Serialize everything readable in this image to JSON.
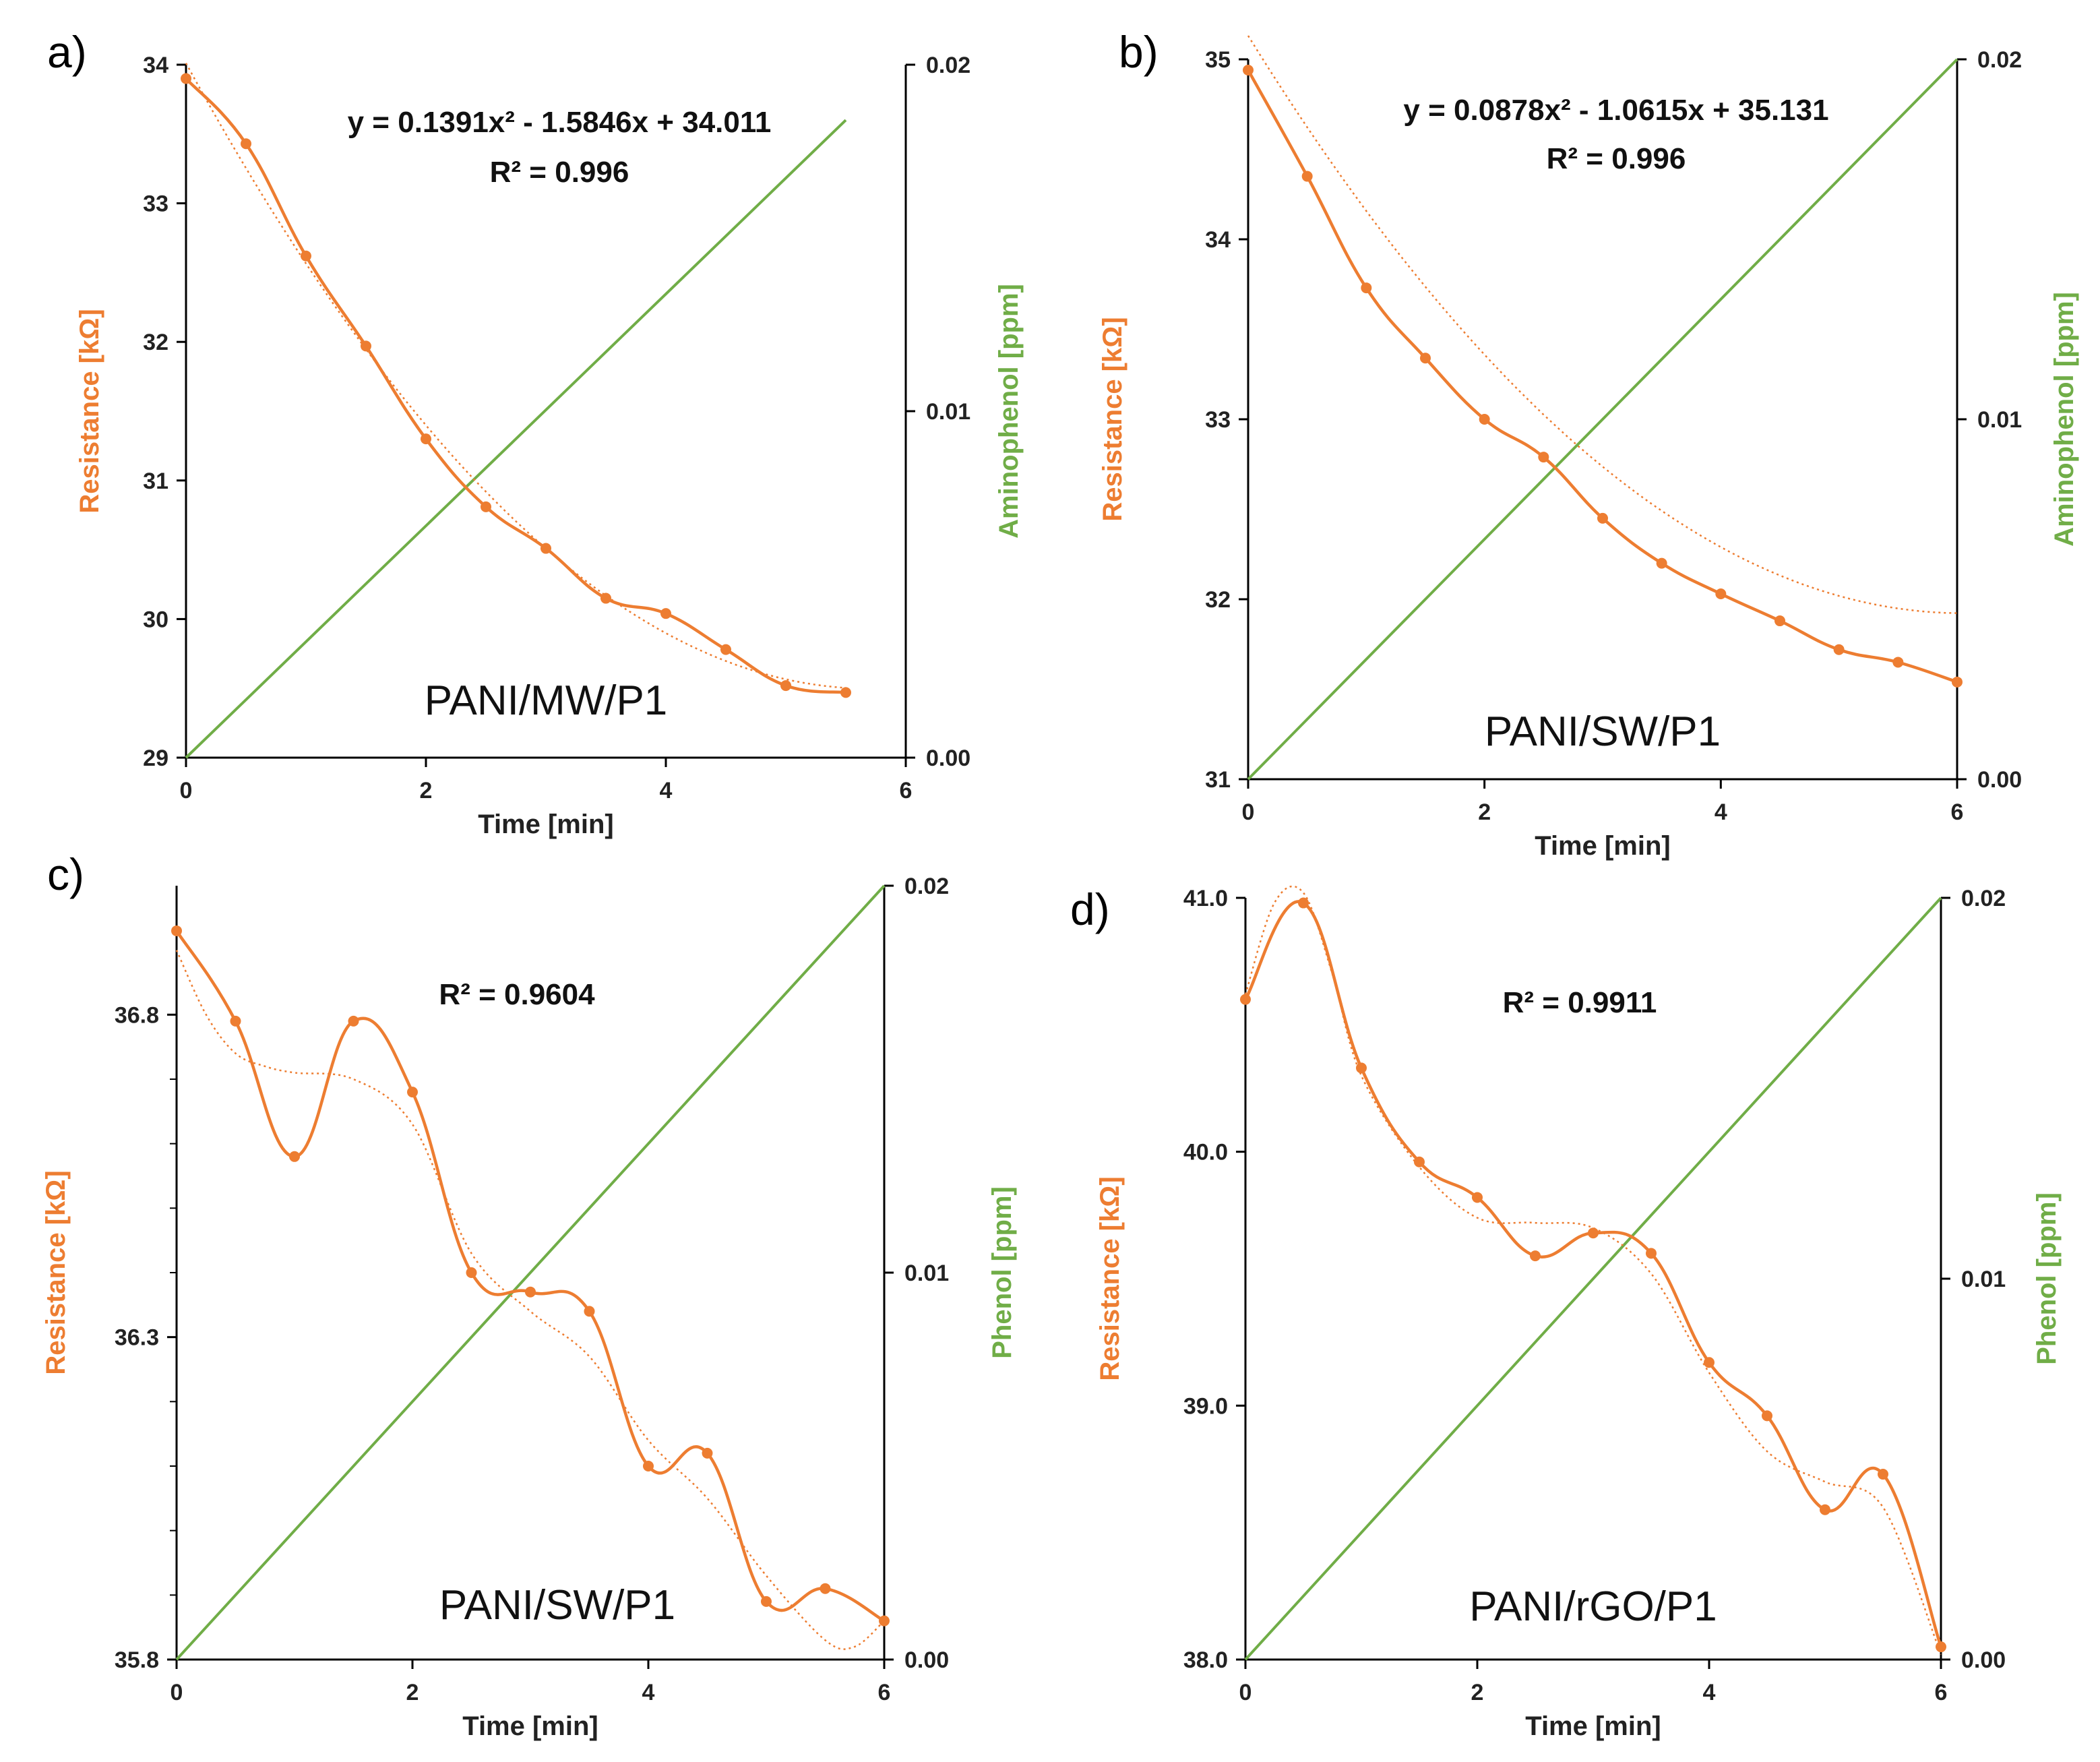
{
  "colors": {
    "resistance": "#ED7D31",
    "analyte": "#70AD47",
    "axis": "#000000"
  },
  "chart_data": [
    {
      "type": "line",
      "panel": "a)",
      "sample": "PANI/MW/P1",
      "xlabel": "Time [min]",
      "ylabel": "Resistance [kΩ]",
      "y2label": "Aminophenol [ppm]",
      "xlim": [
        0,
        6
      ],
      "xticks": [
        0,
        2,
        4,
        6
      ],
      "xtick_labels": [
        "0",
        "2",
        "4",
        "6"
      ],
      "ylim": [
        29,
        34
      ],
      "yticks": [
        29,
        30,
        31,
        32,
        33,
        34
      ],
      "ytick_labels": [
        "29",
        "30",
        "31",
        "32",
        "33",
        "34"
      ],
      "y2lim": [
        0,
        0.02
      ],
      "y2ticks": [
        0,
        0.01,
        0.02
      ],
      "y2tick_labels": [
        "0.00",
        "0.01",
        "0.02"
      ],
      "equation": "y = 0.1391x² - 1.5846x + 34.011",
      "r2": "R² = 0.996",
      "trend": {
        "kind": "poly2",
        "coef": [
          0.1391,
          -1.5846,
          34.011
        ],
        "xrange": [
          0,
          5.5
        ]
      },
      "series": [
        {
          "name": "Resistance",
          "axis": "left",
          "x": [
            0,
            0.5,
            1,
            1.5,
            2,
            2.5,
            3,
            3.5,
            4,
            4.5,
            5,
            5.5
          ],
          "values": [
            33.9,
            33.43,
            32.62,
            31.97,
            31.3,
            30.81,
            30.51,
            30.15,
            30.04,
            29.78,
            29.52,
            29.47
          ]
        },
        {
          "name": "Aminophenol",
          "axis": "right",
          "x": [
            0,
            5.5
          ],
          "values": [
            0.0,
            0.0184
          ]
        }
      ]
    },
    {
      "type": "line",
      "panel": "b)",
      "sample": "PANI/SW/P1",
      "xlabel": "Time [min]",
      "ylabel": "Resistance [kΩ]",
      "y2label": "Aminophenol [ppm]",
      "xlim": [
        0,
        6
      ],
      "xticks": [
        0,
        2,
        4,
        6
      ],
      "xtick_labels": [
        "0",
        "2",
        "4",
        "6"
      ],
      "ylim": [
        31,
        35
      ],
      "yticks": [
        31,
        32,
        33,
        34,
        35
      ],
      "ytick_labels": [
        "31",
        "32",
        "33",
        "34",
        "35"
      ],
      "y2lim": [
        0,
        0.02
      ],
      "y2ticks": [
        0,
        0.01,
        0.02
      ],
      "y2tick_labels": [
        "0.00",
        "0.01",
        "0.02"
      ],
      "equation": "y = 0.0878x² - 1.0615x + 35.131",
      "r2": "R² = 0.996",
      "trend": {
        "kind": "poly2",
        "coef": [
          0.0878,
          -1.0615,
          35.131
        ],
        "xrange": [
          0,
          6
        ]
      },
      "series": [
        {
          "name": "Resistance",
          "axis": "left",
          "x": [
            0,
            0.5,
            1,
            1.5,
            2,
            2.5,
            3,
            3.5,
            4,
            4.5,
            5,
            5.5,
            6
          ],
          "values": [
            34.94,
            34.35,
            33.73,
            33.34,
            33.0,
            32.79,
            32.45,
            32.2,
            32.03,
            31.88,
            31.72,
            31.65,
            31.54
          ]
        },
        {
          "name": "Aminophenol",
          "axis": "right",
          "x": [
            0,
            6
          ],
          "values": [
            0.0,
            0.02
          ]
        }
      ]
    },
    {
      "type": "line",
      "panel": "c)",
      "sample": "PANI/SW/P1",
      "xlabel": "Time [min]",
      "ylabel": "Resistance [kΩ]",
      "y2label": "Phenol [ppm]",
      "xlim": [
        0,
        6
      ],
      "xticks": [
        0,
        2,
        4,
        6
      ],
      "xtick_labels": [
        "0",
        "2",
        "4",
        "6"
      ],
      "ylim": [
        35.8,
        37.0
      ],
      "yticks": [
        35.8,
        36.3,
        36.8
      ],
      "ytick_labels": [
        "35.8",
        "36.3",
        "36.8"
      ],
      "yminor": [
        35.9,
        36.0,
        36.1,
        36.2,
        36.4,
        36.5,
        36.6,
        36.7
      ],
      "y2lim": [
        0,
        0.02
      ],
      "y2ticks": [
        0,
        0.01,
        0.02
      ],
      "y2tick_labels": [
        "0.00",
        "0.01",
        "0.02"
      ],
      "equation": "",
      "r2": "R² = 0.9604",
      "trend": {
        "kind": "points",
        "x": [
          0,
          0.25,
          0.5,
          0.75,
          1,
          1.5,
          2,
          2.5,
          3,
          3.5,
          4,
          4.5,
          5,
          5.5,
          5.75,
          6
        ],
        "y": [
          36.9,
          36.8,
          36.74,
          36.72,
          36.71,
          36.7,
          36.63,
          36.43,
          36.34,
          36.27,
          36.14,
          36.05,
          35.93,
          35.83,
          35.82,
          35.86
        ]
      },
      "series": [
        {
          "name": "Resistance",
          "axis": "left",
          "x": [
            0,
            0.5,
            1,
            1.5,
            2,
            2.5,
            3,
            3.5,
            4,
            4.5,
            5,
            5.5,
            6
          ],
          "values": [
            36.93,
            36.79,
            36.58,
            36.79,
            36.68,
            36.4,
            36.37,
            36.34,
            36.1,
            36.12,
            35.89,
            35.91,
            35.86
          ]
        },
        {
          "name": "Phenol",
          "axis": "right",
          "x": [
            0,
            6
          ],
          "values": [
            0.0,
            0.02
          ]
        }
      ]
    },
    {
      "type": "line",
      "panel": "d)",
      "sample": "PANI/rGO/P1",
      "xlabel": "Time [min]",
      "ylabel": "Resistance [kΩ]",
      "y2label": "Phenol [ppm]",
      "xlim": [
        0,
        6
      ],
      "xticks": [
        0,
        2,
        4,
        6
      ],
      "xtick_labels": [
        "0",
        "2",
        "4",
        "6"
      ],
      "ylim": [
        38.0,
        41.0
      ],
      "yticks": [
        38.0,
        39.0,
        40.0,
        41.0
      ],
      "ytick_labels": [
        "38.0",
        "39.0",
        "40.0",
        "41.0"
      ],
      "y2lim": [
        0,
        0.02
      ],
      "y2ticks": [
        0,
        0.01,
        0.02
      ],
      "y2tick_labels": [
        "0.00",
        "0.01",
        "0.02"
      ],
      "equation": "",
      "r2": "R² = 0.9911",
      "trend": {
        "kind": "points",
        "x": [
          0,
          0.25,
          0.5,
          0.75,
          1,
          1.5,
          2,
          2.5,
          3,
          3.5,
          4,
          4.5,
          5,
          5.5,
          6
        ],
        "y": [
          40.62,
          40.98,
          41.02,
          40.7,
          40.3,
          39.94,
          39.74,
          39.72,
          39.7,
          39.52,
          39.13,
          38.82,
          38.7,
          38.6,
          38.02
        ]
      },
      "series": [
        {
          "name": "Resistance",
          "axis": "left",
          "x": [
            0,
            0.5,
            1,
            1.5,
            2,
            2.5,
            3,
            3.5,
            4,
            4.5,
            5,
            5.5,
            6
          ],
          "values": [
            40.6,
            40.98,
            40.33,
            39.96,
            39.82,
            39.59,
            39.68,
            39.6,
            39.17,
            38.96,
            38.59,
            38.73,
            38.05
          ]
        },
        {
          "name": "Phenol",
          "axis": "right",
          "x": [
            0,
            6
          ],
          "values": [
            0.0,
            0.02
          ]
        }
      ]
    }
  ]
}
